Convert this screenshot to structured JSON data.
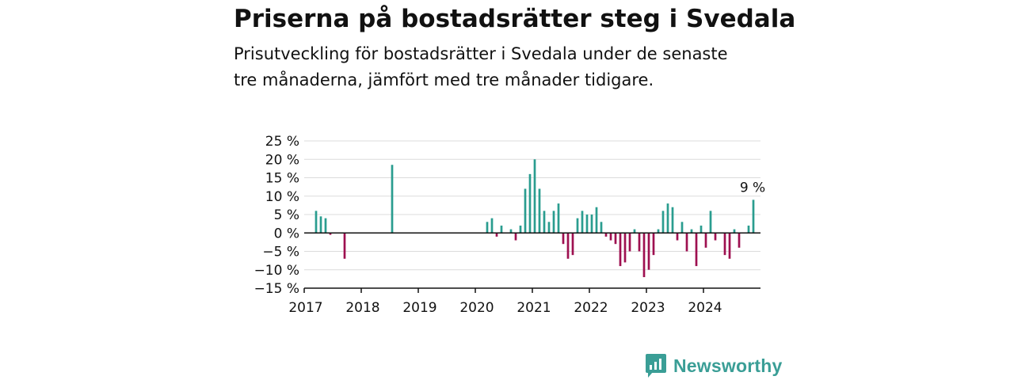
{
  "title": "Priserna på bostadsrätter steg i Svedala",
  "subtitle": "Prisutveckling för bostadsrätter i Svedala under de senaste tre månaderna, jämfört med tre månader tidigare.",
  "brand": {
    "name": "Newsworthy",
    "icon": "newsworthy-logo-icon",
    "color": "#3a9e96"
  },
  "chart_data": {
    "type": "bar",
    "title": "Priserna på bostadsrätter steg i Svedala",
    "xlabel": "",
    "ylabel": "",
    "ylim": [
      -15,
      25
    ],
    "y_ticks": [
      25,
      20,
      15,
      10,
      5,
      0,
      -5,
      -10,
      -15
    ],
    "y_tick_labels": [
      "25 %",
      "20 %",
      "15 %",
      "10 %",
      "5 %",
      "0 %",
      "−5 %",
      "−10 %",
      "−15 %"
    ],
    "x_tick_labels": [
      "2017",
      "2018",
      "2019",
      "2020",
      "2021",
      "2022",
      "2023",
      "2024"
    ],
    "x_range": [
      "2017-01",
      "2024-12"
    ],
    "positive_color": "#2a9d8f",
    "negative_color": "#9e1050",
    "grid": true,
    "annotation": {
      "text": "9 %",
      "target": "2024-11"
    },
    "points": [
      {
        "x": "2017-03",
        "y": 6
      },
      {
        "x": "2017-04",
        "y": 4.5
      },
      {
        "x": "2017-05",
        "y": 4
      },
      {
        "x": "2017-06",
        "y": -0.5
      },
      {
        "x": "2017-09",
        "y": -7
      },
      {
        "x": "2018-07",
        "y": 18.5
      },
      {
        "x": "2020-03",
        "y": 3
      },
      {
        "x": "2020-04",
        "y": 4
      },
      {
        "x": "2020-05",
        "y": -1
      },
      {
        "x": "2020-06",
        "y": 2
      },
      {
        "x": "2020-08",
        "y": 1
      },
      {
        "x": "2020-09",
        "y": -2
      },
      {
        "x": "2020-10",
        "y": 2
      },
      {
        "x": "2020-11",
        "y": 12
      },
      {
        "x": "2020-12",
        "y": 16
      },
      {
        "x": "2021-01",
        "y": 20
      },
      {
        "x": "2021-02",
        "y": 12
      },
      {
        "x": "2021-03",
        "y": 6
      },
      {
        "x": "2021-04",
        "y": 3
      },
      {
        "x": "2021-05",
        "y": 6
      },
      {
        "x": "2021-06",
        "y": 8
      },
      {
        "x": "2021-07",
        "y": -3
      },
      {
        "x": "2021-08",
        "y": -7
      },
      {
        "x": "2021-09",
        "y": -6
      },
      {
        "x": "2021-10",
        "y": 4
      },
      {
        "x": "2021-11",
        "y": 6
      },
      {
        "x": "2021-12",
        "y": 5
      },
      {
        "x": "2022-01",
        "y": 5
      },
      {
        "x": "2022-02",
        "y": 7
      },
      {
        "x": "2022-03",
        "y": 3
      },
      {
        "x": "2022-04",
        "y": -1
      },
      {
        "x": "2022-05",
        "y": -2
      },
      {
        "x": "2022-06",
        "y": -3
      },
      {
        "x": "2022-07",
        "y": -9
      },
      {
        "x": "2022-08",
        "y": -8
      },
      {
        "x": "2022-09",
        "y": -5
      },
      {
        "x": "2022-10",
        "y": 1
      },
      {
        "x": "2022-11",
        "y": -5
      },
      {
        "x": "2022-12",
        "y": -12
      },
      {
        "x": "2023-01",
        "y": -10
      },
      {
        "x": "2023-02",
        "y": -6
      },
      {
        "x": "2023-03",
        "y": 1
      },
      {
        "x": "2023-04",
        "y": 6
      },
      {
        "x": "2023-05",
        "y": 8
      },
      {
        "x": "2023-06",
        "y": 7
      },
      {
        "x": "2023-07",
        "y": -2
      },
      {
        "x": "2023-08",
        "y": 3
      },
      {
        "x": "2023-09",
        "y": -5
      },
      {
        "x": "2023-10",
        "y": 1
      },
      {
        "x": "2023-11",
        "y": -9
      },
      {
        "x": "2023-12",
        "y": 2
      },
      {
        "x": "2024-01",
        "y": -4
      },
      {
        "x": "2024-02",
        "y": 6
      },
      {
        "x": "2024-03",
        "y": -2
      },
      {
        "x": "2024-05",
        "y": -6
      },
      {
        "x": "2024-06",
        "y": -7
      },
      {
        "x": "2024-07",
        "y": 1
      },
      {
        "x": "2024-08",
        "y": -4
      },
      {
        "x": "2024-10",
        "y": 2
      },
      {
        "x": "2024-11",
        "y": 9
      }
    ]
  }
}
